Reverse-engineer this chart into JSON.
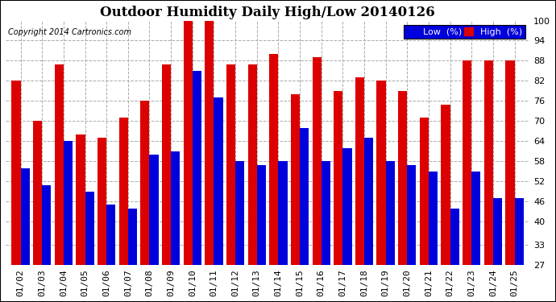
{
  "title": "Outdoor Humidity Daily High/Low 20140126",
  "copyright": "Copyright 2014 Cartronics.com",
  "dates": [
    "01/02",
    "01/03",
    "01/04",
    "01/05",
    "01/06",
    "01/07",
    "01/08",
    "01/09",
    "01/10",
    "01/11",
    "01/12",
    "01/13",
    "01/14",
    "01/15",
    "01/16",
    "01/17",
    "01/18",
    "01/19",
    "01/20",
    "01/21",
    "01/22",
    "01/23",
    "01/24",
    "01/25"
  ],
  "high": [
    82,
    70,
    87,
    66,
    65,
    71,
    76,
    87,
    100,
    100,
    87,
    87,
    90,
    78,
    89,
    79,
    83,
    82,
    79,
    71,
    75,
    88,
    88,
    88
  ],
  "low": [
    56,
    51,
    64,
    49,
    45,
    44,
    60,
    61,
    85,
    77,
    58,
    57,
    58,
    68,
    58,
    62,
    65,
    58,
    57,
    55,
    44,
    55,
    47,
    47
  ],
  "ymin": 27,
  "ymax": 100,
  "yticks": [
    27,
    33,
    40,
    46,
    52,
    58,
    64,
    70,
    76,
    82,
    88,
    94,
    100
  ],
  "low_color": "#0000dd",
  "high_color": "#dd0000",
  "bg_color": "#ffffff",
  "grid_color": "#aaaaaa",
  "title_fontsize": 12,
  "copyright_fontsize": 7,
  "legend_fontsize": 8,
  "tick_fontsize": 8
}
